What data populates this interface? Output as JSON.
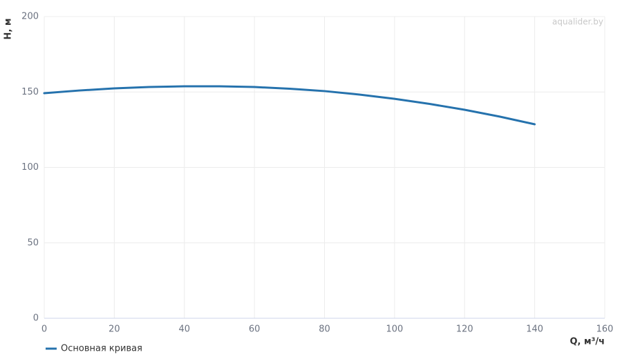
{
  "chart_data": {
    "type": "line",
    "watermark": "aqualider.by",
    "x_label": "Q, м³/ч",
    "y_label": "H, м",
    "x": [
      0,
      10,
      20,
      30,
      40,
      50,
      60,
      70,
      80,
      90,
      100,
      110,
      120,
      130,
      140
    ],
    "series": [
      {
        "name": "Основная кривая",
        "color": "#2572ad",
        "values": [
          149.2,
          151,
          152.4,
          153.3,
          153.8,
          153.8,
          153.3,
          152.2,
          150.6,
          148.3,
          145.5,
          142.1,
          138.2,
          133.7,
          128.6
        ]
      }
    ],
    "xlim": [
      0,
      160
    ],
    "xticks": [
      0,
      20,
      40,
      60,
      80,
      100,
      120,
      140,
      160
    ],
    "ylim": [
      0,
      200
    ],
    "yticks": [
      0,
      50,
      100,
      150,
      200
    ],
    "grid": true
  }
}
